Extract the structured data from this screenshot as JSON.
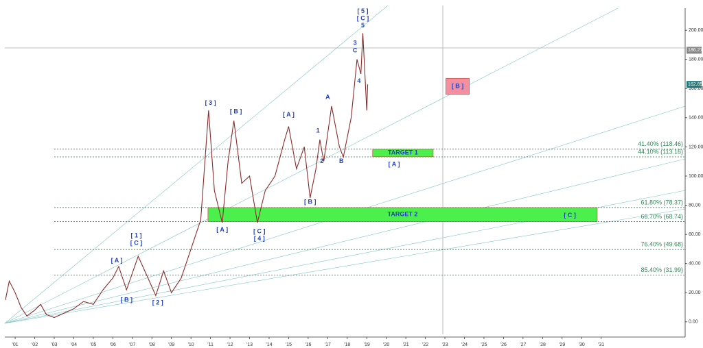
{
  "chart_data": {
    "type": "line",
    "series": [
      {
        "color": "#8b2a2a",
        "x": [
          2000.5,
          2000.7,
          2001.0,
          2001.3,
          2001.6,
          2002.0,
          2002.3,
          2002.6,
          2003.0,
          2003.5,
          2004.0,
          2004.5,
          2005.0,
          2005.5,
          2006.0,
          2006.3,
          2006.7,
          2007.3,
          2007.8,
          2008.2,
          2008.6,
          2009.0,
          2009.5,
          2010.0,
          2010.5,
          2010.9,
          2011.2,
          2011.6,
          2011.9,
          2012.2,
          2012.6,
          2013.0,
          2013.4,
          2013.8,
          2014.3,
          2014.8,
          2015.0,
          2015.4,
          2015.8,
          2016.1,
          2016.4,
          2016.6,
          2016.8,
          2017.2,
          2017.6,
          2017.8,
          2018.2,
          2018.5,
          2018.7,
          2018.8,
          2019.0,
          2019.05
        ],
        "values": [
          15,
          28,
          20,
          10,
          4,
          8,
          12,
          5,
          3,
          6,
          9,
          14,
          12,
          22,
          30,
          38,
          22,
          45,
          30,
          18,
          35,
          20,
          30,
          50,
          70,
          145,
          90,
          68,
          110,
          138,
          95,
          100,
          68,
          90,
          100,
          125,
          134,
          105,
          120,
          85,
          105,
          125,
          110,
          148,
          120,
          113,
          140,
          180,
          170,
          198,
          145,
          162.85
        ]
      }
    ],
    "xlim": [
      2000.47,
      2035.3
    ],
    "xticks": [
      {
        "value": 2001,
        "label": "'01"
      },
      {
        "value": 2002,
        "label": "'02"
      },
      {
        "value": 2003,
        "label": "'03"
      },
      {
        "value": 2004,
        "label": "'04"
      },
      {
        "value": 2005,
        "label": "'05"
      },
      {
        "value": 2006,
        "label": "'06"
      },
      {
        "value": 2007,
        "label": "'07"
      },
      {
        "value": 2008,
        "label": "'08"
      },
      {
        "value": 2009,
        "label": "'09"
      },
      {
        "value": 2010,
        "label": "'10"
      },
      {
        "value": 2011,
        "label": "'11"
      },
      {
        "value": 2012,
        "label": "'12"
      },
      {
        "value": 2013,
        "label": "'13"
      },
      {
        "value": 2014,
        "label": "'14"
      },
      {
        "value": 2015,
        "label": "'15"
      },
      {
        "value": 2016,
        "label": "'16"
      },
      {
        "value": 2017,
        "label": "'17"
      },
      {
        "value": 2018,
        "label": "'18"
      },
      {
        "value": 2019,
        "label": "'19"
      },
      {
        "value": 2020,
        "label": "'20"
      },
      {
        "value": 2021,
        "label": "'21"
      },
      {
        "value": 2022,
        "label": "'22"
      },
      {
        "value": 2023,
        "label": "'23"
      },
      {
        "value": 2024,
        "label": "'24"
      },
      {
        "value": 2025,
        "label": "'25"
      },
      {
        "value": 2026,
        "label": "'26"
      },
      {
        "value": 2027,
        "label": "'27"
      },
      {
        "value": 2028,
        "label": "'28"
      },
      {
        "value": 2029,
        "label": "'29"
      },
      {
        "value": 2030,
        "label": "'30"
      },
      {
        "value": 2031,
        "label": "'31"
      }
    ],
    "ylim": [
      -10.4,
      215.1
    ],
    "yticks": [
      {
        "value": 0,
        "label": "0.00"
      },
      {
        "value": 20,
        "label": "20.00"
      },
      {
        "value": 40,
        "label": "40.00"
      },
      {
        "value": 60,
        "label": "60.00"
      },
      {
        "value": 80,
        "label": "80.00"
      },
      {
        "value": 100,
        "label": "100.00"
      },
      {
        "value": 120,
        "label": "120.00"
      },
      {
        "value": 140,
        "label": "140.00"
      },
      {
        "value": 160,
        "label": "160.00"
      },
      {
        "value": 180,
        "label": "180.00"
      },
      {
        "value": 200,
        "label": "200.00"
      }
    ],
    "fib_levels": [
      {
        "value": 118.46,
        "label": "41.40% (118.46)"
      },
      {
        "value": 113.16,
        "label": "44.10% (113.16)"
      },
      {
        "value": 78.37,
        "label": "61.80% (78.37)"
      },
      {
        "value": 68.74,
        "label": "66.70% (68.74)"
      },
      {
        "value": 49.68,
        "label": "76.40% (49.68)"
      },
      {
        "value": 31.99,
        "label": "85.40% (31.99)"
      }
    ],
    "boxes": [
      {
        "label": "[ B ]",
        "x": [
          2023.05,
          2024.25
        ],
        "y": [
          156,
          167
        ],
        "color": "#f48fa0"
      },
      {
        "label": "TARGET 1",
        "x": [
          2019.3,
          2022.4
        ],
        "y": [
          113.2,
          118.4
        ],
        "color": "#4cf04c"
      },
      {
        "label": "TARGET 2",
        "x": [
          2010.87,
          2030.8
        ],
        "y": [
          68.74,
          78.37
        ],
        "color": "#4cf04c"
      }
    ],
    "annotations": [
      {
        "text": "[ 5 ]",
        "x": 2018.8,
        "y": 213
      },
      {
        "text": "[ C ]",
        "x": 2018.8,
        "y": 208
      },
      {
        "text": "5",
        "x": 2018.8,
        "y": 203
      },
      {
        "text": "3",
        "x": 2018.4,
        "y": 191
      },
      {
        "text": "C",
        "x": 2018.4,
        "y": 186
      },
      {
        "text": "4",
        "x": 2018.6,
        "y": 165
      },
      {
        "text": "A",
        "x": 2017.0,
        "y": 154
      },
      {
        "text": "1",
        "x": 2016.5,
        "y": 131
      },
      {
        "text": "2",
        "x": 2016.7,
        "y": 110
      },
      {
        "text": "B",
        "x": 2017.7,
        "y": 110
      },
      {
        "text": "[ A ]",
        "x": 2015.0,
        "y": 142
      },
      {
        "text": "[ B ]",
        "x": 2016.1,
        "y": 82
      },
      {
        "text": "[ 3 ]",
        "x": 2011.0,
        "y": 150
      },
      {
        "text": "[ B ]",
        "x": 2012.3,
        "y": 144
      },
      {
        "text": "[ A ]",
        "x": 2011.6,
        "y": 63
      },
      {
        "text": "[ C ]",
        "x": 2013.5,
        "y": 62
      },
      {
        "text": "[ 4 ]",
        "x": 2013.5,
        "y": 57
      },
      {
        "text": "[ 1 ]",
        "x": 2007.2,
        "y": 59
      },
      {
        "text": "[ C ]",
        "x": 2007.2,
        "y": 54
      },
      {
        "text": "[ A ]",
        "x": 2006.2,
        "y": 42
      },
      {
        "text": "[ B ]",
        "x": 2006.7,
        "y": 15
      },
      {
        "text": "[ 2 ]",
        "x": 2008.3,
        "y": 13
      },
      {
        "text": "[ A ]",
        "x": 2020.4,
        "y": 108
      },
      {
        "text": "[ C ]",
        "x": 2029.4,
        "y": 73
      }
    ],
    "price_labels": [
      {
        "value": 186.27,
        "label": "186.27",
        "color": "#888"
      },
      {
        "value": 162.85,
        "label": "162.85",
        "color": "#1b7a7a"
      }
    ]
  }
}
